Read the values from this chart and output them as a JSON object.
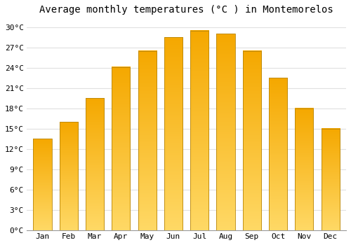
{
  "title": "Average monthly temperatures (°C ) in Montemorelos",
  "months": [
    "Jan",
    "Feb",
    "Mar",
    "Apr",
    "May",
    "Jun",
    "Jul",
    "Aug",
    "Sep",
    "Oct",
    "Nov",
    "Dec"
  ],
  "values": [
    13.5,
    16.0,
    19.5,
    24.1,
    26.5,
    28.5,
    29.5,
    29.0,
    26.5,
    22.5,
    18.0,
    15.0
  ],
  "bar_color_top": "#F5A800",
  "bar_color_bottom": "#FFD966",
  "bar_edge_color": "#B8860B",
  "ylim": [
    0,
    31
  ],
  "yticks": [
    0,
    3,
    6,
    9,
    12,
    15,
    18,
    21,
    24,
    27,
    30
  ],
  "ytick_labels": [
    "0°C",
    "3°C",
    "6°C",
    "9°C",
    "12°C",
    "15°C",
    "18°C",
    "21°C",
    "24°C",
    "27°C",
    "30°C"
  ],
  "background_color": "#ffffff",
  "grid_color": "#e0e0e0",
  "title_fontsize": 10,
  "tick_fontsize": 8,
  "bar_width": 0.7
}
